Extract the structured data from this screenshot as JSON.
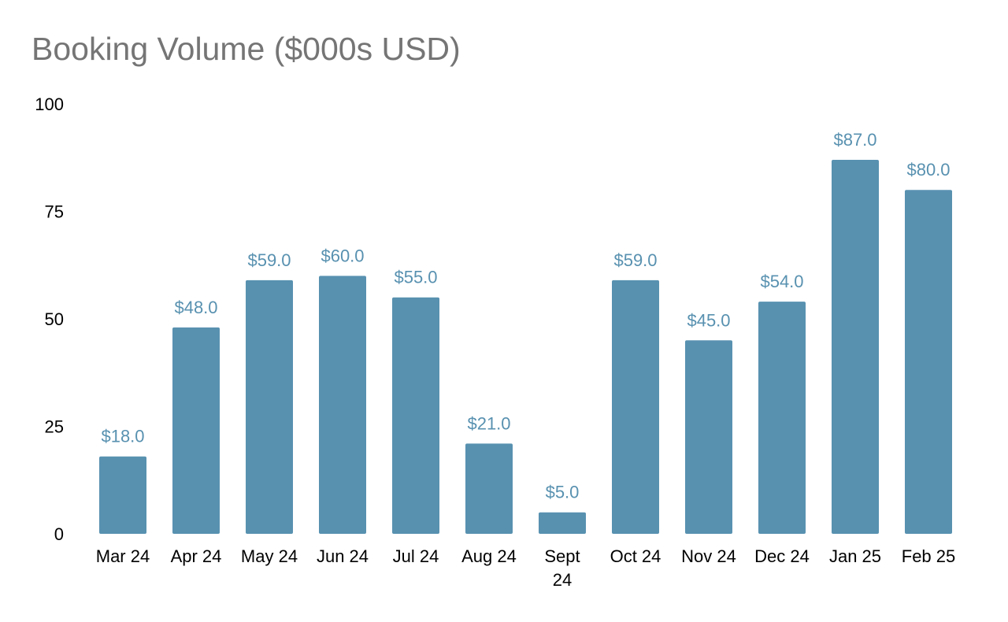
{
  "chart_data": {
    "type": "bar",
    "title": "Booking Volume ($000s USD)",
    "xlabel": "",
    "ylabel": "",
    "categories": [
      "Mar 24",
      "Apr 24",
      "May 24",
      "Jun 24",
      "Jul 24",
      "Aug 24",
      "Sept 24",
      "Oct 24",
      "Nov 24",
      "Dec 24",
      "Jan 25",
      "Feb 25"
    ],
    "values": [
      18,
      48,
      59,
      60,
      55,
      21,
      5,
      59,
      45,
      54,
      87,
      80
    ],
    "data_labels": [
      "$18.0",
      "$48.0",
      "$59.0",
      "$60.0",
      "$55.0",
      "$21.0",
      "$5.0",
      "$59.0",
      "$45.0",
      "$54.0",
      "$87.0",
      "$80.0"
    ],
    "ylim": [
      0,
      100
    ],
    "yticks": [
      "0",
      "25",
      "50",
      "75",
      "100"
    ],
    "grid": false,
    "legend": "none",
    "colors": {
      "bar": "#5891B0",
      "data_label": "#5891B0",
      "title": "#757575",
      "axis_text": "#000000"
    }
  }
}
